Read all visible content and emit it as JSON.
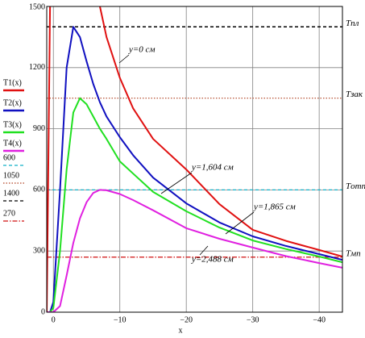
{
  "chart_data": {
    "type": "line",
    "x_label": "x",
    "x": [
      1,
      0.5,
      0,
      -1,
      -2,
      -3,
      -4,
      -5,
      -6,
      -7,
      -8,
      -10,
      -12,
      -15,
      -20,
      -25,
      -30,
      -35,
      -40,
      -43.5
    ],
    "xlim": [
      1,
      -43.5
    ],
    "xticks": [
      0,
      {
        "value": -10,
        "label": "−10"
      },
      {
        "value": -20,
        "label": "−20"
      },
      {
        "value": -30,
        "label": "−30"
      },
      {
        "value": -40,
        "label": "−40"
      }
    ],
    "ylim": [
      0,
      1500
    ],
    "yticks": [
      0,
      300,
      600,
      900,
      1200,
      1500
    ],
    "grid": true,
    "series": [
      {
        "name": "T1(x)",
        "color": "#e01010",
        "values": [
          0,
          1500,
          null,
          null,
          null,
          null,
          null,
          null,
          null,
          1500,
          1350,
          1150,
          1000,
          850,
          700,
          530,
          404,
          350,
          305,
          273
        ]
      },
      {
        "name": "T2(x)",
        "color": "#1010c0",
        "values": [
          0,
          0,
          50,
          600,
          1200,
          1400,
          1350,
          1230,
          1120,
          1030,
          960,
          859,
          770,
          660,
          534,
          440,
          372,
          325,
          285,
          257
        ]
      },
      {
        "name": "T3(x)",
        "color": "#20e020",
        "values": [
          0,
          0,
          20,
          300,
          700,
          980,
          1050,
          1020,
          960,
          900,
          850,
          740,
          680,
          590,
          495,
          415,
          352,
          310,
          273,
          245
        ]
      },
      {
        "name": "T4(x)",
        "color": "#e020e0",
        "values": [
          0,
          0,
          0,
          30,
          180,
          340,
          460,
          540,
          585,
          600,
          598,
          580,
          550,
          500,
          412,
          360,
          317,
          275,
          241,
          218
        ]
      }
    ],
    "reference_lines": [
      {
        "value": 600,
        "color": "#10b0c8",
        "label": "Tотп"
      },
      {
        "value": 1050,
        "color": "#b04020",
        "label": "Tзак"
      },
      {
        "value": 1400,
        "color": "#000000",
        "label": "Tпл"
      },
      {
        "value": 270,
        "color": "#d01010",
        "label": "Tмп"
      }
    ],
    "annotations": [
      "y=0 см",
      "y=1,604 см",
      "y=1,865 см",
      "y=2,488 см"
    ]
  }
}
